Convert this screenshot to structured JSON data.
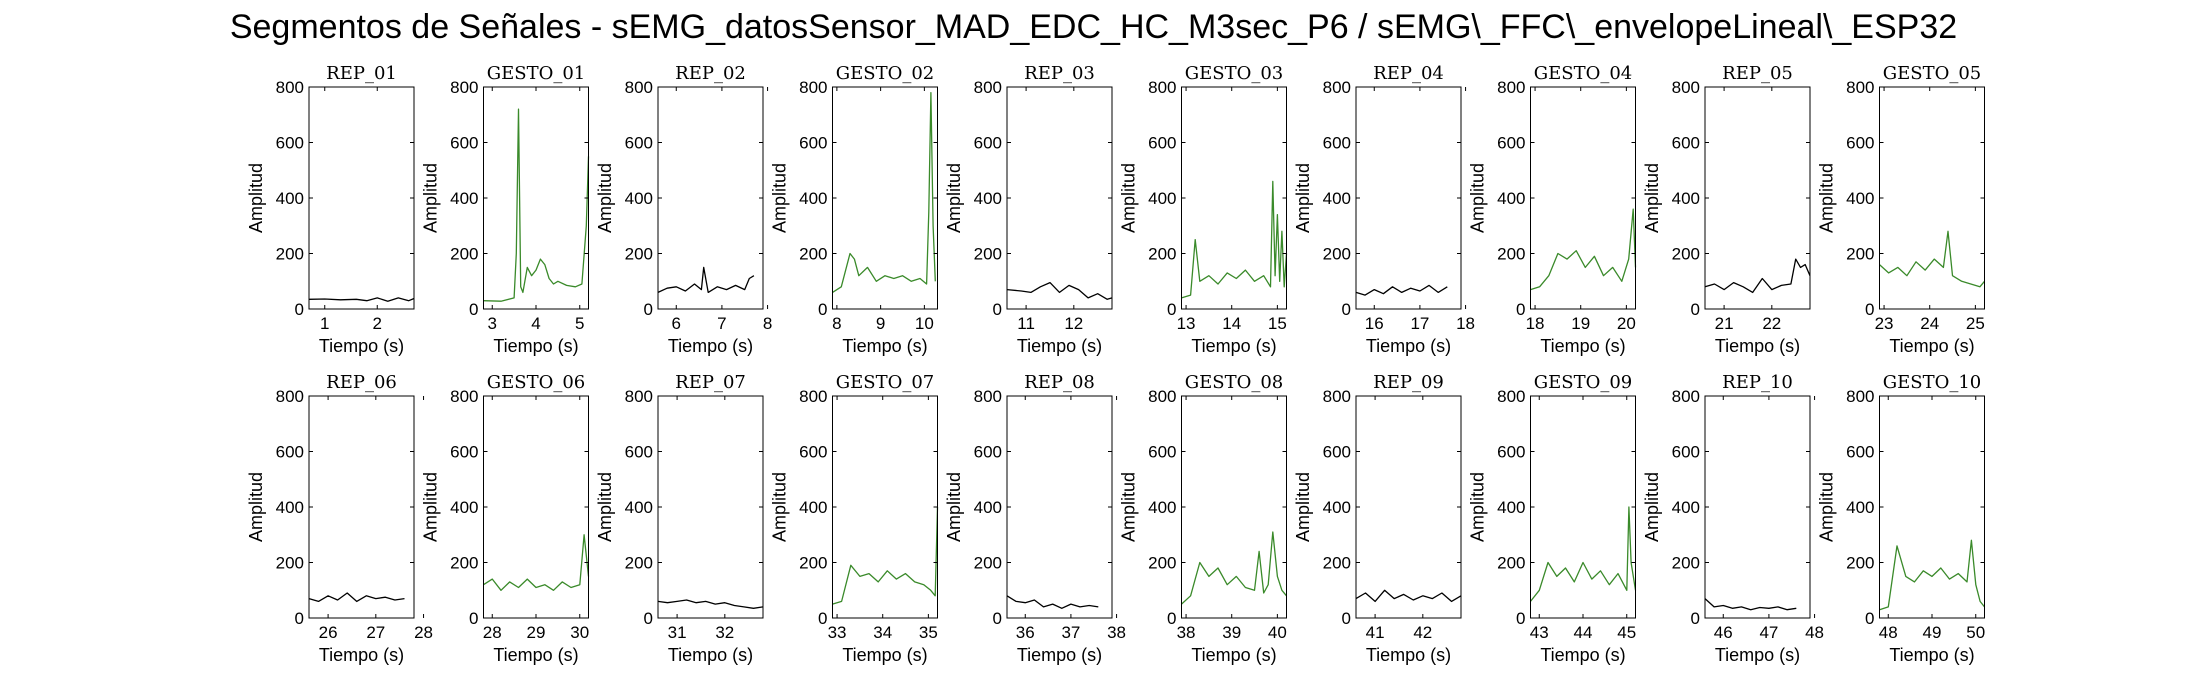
{
  "figure": {
    "title": "Segmentos de Señales - sEMG_datosSensor_MAD_EDC_HC_M3sec_P6 / sEMG\\_FFC\\_envelopeLineal\\_ESP32"
  },
  "colors": {
    "rep": "#000000",
    "gesto": "#3a8a2a",
    "axis": "#000000",
    "background": "#ffffff"
  },
  "chart_data": [
    {
      "type": "line",
      "title": "REP_01",
      "xlabel": "Tiempo (s)",
      "ylabel": "Amplitud",
      "xlim": [
        0.7,
        2.7
      ],
      "ylim": [
        0,
        800
      ],
      "xticks": [
        1,
        2
      ],
      "yticks": [
        0,
        200,
        400,
        600,
        800
      ],
      "series": [
        {
          "color": "#000000",
          "x": [
            0.7,
            1.0,
            1.3,
            1.6,
            1.8,
            2.0,
            2.2,
            2.4,
            2.6,
            2.7
          ],
          "y": [
            35,
            36,
            33,
            35,
            30,
            40,
            28,
            40,
            30,
            38
          ]
        }
      ]
    },
    {
      "type": "line",
      "title": "GESTO_01",
      "xlabel": "Tiempo (s)",
      "ylabel": "Amplitud",
      "xlim": [
        2.8,
        5.2
      ],
      "ylim": [
        0,
        800
      ],
      "xticks": [
        3,
        4,
        5
      ],
      "yticks": [
        0,
        200,
        400,
        600,
        800
      ],
      "series": [
        {
          "color": "#3a8a2a",
          "x": [
            2.8,
            3.2,
            3.5,
            3.55,
            3.6,
            3.65,
            3.7,
            3.8,
            3.9,
            4.0,
            4.1,
            4.2,
            4.3,
            4.4,
            4.5,
            4.7,
            4.9,
            5.05,
            5.15,
            5.2
          ],
          "y": [
            30,
            28,
            40,
            200,
            720,
            80,
            60,
            150,
            120,
            140,
            180,
            160,
            110,
            90,
            100,
            85,
            80,
            90,
            300,
            550
          ]
        }
      ]
    },
    {
      "type": "line",
      "title": "REP_02",
      "xlabel": "Tiempo (s)",
      "ylabel": "Amplitud",
      "xlim": [
        5.6,
        7.9
      ],
      "ylim": [
        0,
        800
      ],
      "xticks": [
        6,
        7,
        8
      ],
      "yticks": [
        0,
        200,
        400,
        600,
        800
      ],
      "series": [
        {
          "color": "#000000",
          "x": [
            5.6,
            5.8,
            6.0,
            6.2,
            6.4,
            6.55,
            6.6,
            6.7,
            6.9,
            7.1,
            7.3,
            7.5,
            7.6,
            7.7
          ],
          "y": [
            60,
            75,
            80,
            65,
            90,
            70,
            150,
            60,
            80,
            70,
            85,
            70,
            110,
            120
          ]
        }
      ]
    },
    {
      "type": "line",
      "title": "GESTO_02",
      "xlabel": "Tiempo (s)",
      "ylabel": "Amplitud",
      "xlim": [
        7.9,
        10.3
      ],
      "ylim": [
        0,
        800
      ],
      "xticks": [
        8,
        9,
        10
      ],
      "yticks": [
        0,
        200,
        400,
        600,
        800
      ],
      "series": [
        {
          "color": "#3a8a2a",
          "x": [
            7.9,
            8.1,
            8.3,
            8.4,
            8.5,
            8.7,
            8.9,
            9.1,
            9.3,
            9.5,
            9.7,
            9.9,
            10.05,
            10.1,
            10.15,
            10.2,
            10.25
          ],
          "y": [
            60,
            80,
            200,
            180,
            120,
            150,
            100,
            120,
            110,
            120,
            100,
            110,
            90,
            350,
            780,
            300,
            100
          ]
        }
      ]
    },
    {
      "type": "line",
      "title": "REP_03",
      "xlabel": "Tiempo (s)",
      "ylabel": "Amplitud",
      "xlim": [
        10.6,
        12.8
      ],
      "ylim": [
        0,
        800
      ],
      "xticks": [
        11,
        12
      ],
      "yticks": [
        0,
        200,
        400,
        600,
        800
      ],
      "series": [
        {
          "color": "#000000",
          "x": [
            10.6,
            10.9,
            11.1,
            11.3,
            11.5,
            11.7,
            11.9,
            12.1,
            12.3,
            12.5,
            12.7,
            12.8
          ],
          "y": [
            70,
            65,
            60,
            80,
            95,
            60,
            85,
            70,
            40,
            55,
            35,
            40
          ]
        }
      ]
    },
    {
      "type": "line",
      "title": "GESTO_03",
      "xlabel": "Tiempo (s)",
      "ylabel": "Amplitud",
      "xlim": [
        12.9,
        15.2
      ],
      "ylim": [
        0,
        800
      ],
      "xticks": [
        13,
        14,
        15
      ],
      "yticks": [
        0,
        200,
        400,
        600,
        800
      ],
      "series": [
        {
          "color": "#3a8a2a",
          "x": [
            12.9,
            13.1,
            13.2,
            13.3,
            13.5,
            13.7,
            13.9,
            14.1,
            14.3,
            14.5,
            14.7,
            14.85,
            14.9,
            14.95,
            15.0,
            15.05,
            15.1,
            15.15,
            15.2
          ],
          "y": [
            40,
            50,
            250,
            100,
            120,
            90,
            130,
            110,
            140,
            100,
            120,
            80,
            460,
            120,
            340,
            100,
            280,
            80,
            200
          ]
        }
      ]
    },
    {
      "type": "line",
      "title": "REP_04",
      "xlabel": "Tiempo (s)",
      "ylabel": "Amplitud",
      "xlim": [
        15.6,
        17.9
      ],
      "ylim": [
        0,
        800
      ],
      "xticks": [
        16,
        17,
        18
      ],
      "yticks": [
        0,
        200,
        400,
        600,
        800
      ],
      "series": [
        {
          "color": "#000000",
          "x": [
            15.6,
            15.8,
            16.0,
            16.2,
            16.4,
            16.6,
            16.8,
            17.0,
            17.2,
            17.4,
            17.6
          ],
          "y": [
            60,
            50,
            70,
            55,
            80,
            60,
            75,
            65,
            85,
            60,
            80
          ]
        }
      ]
    },
    {
      "type": "line",
      "title": "GESTO_04",
      "xlabel": "Tiempo (s)",
      "ylabel": "Amplitud",
      "xlim": [
        17.9,
        20.2
      ],
      "ylim": [
        0,
        800
      ],
      "xticks": [
        18,
        19,
        20
      ],
      "yticks": [
        0,
        200,
        400,
        600,
        800
      ],
      "series": [
        {
          "color": "#3a8a2a",
          "x": [
            17.9,
            18.1,
            18.3,
            18.5,
            18.7,
            18.9,
            19.1,
            19.3,
            19.5,
            19.7,
            19.9,
            20.05,
            20.15,
            20.2
          ],
          "y": [
            70,
            80,
            120,
            200,
            180,
            210,
            150,
            190,
            120,
            150,
            100,
            180,
            360,
            150
          ]
        }
      ]
    },
    {
      "type": "line",
      "title": "REP_05",
      "xlabel": "Tiempo (s)",
      "ylabel": "Amplitud",
      "xlim": [
        20.6,
        22.8
      ],
      "ylim": [
        0,
        800
      ],
      "xticks": [
        21,
        22
      ],
      "yticks": [
        0,
        200,
        400,
        600,
        800
      ],
      "series": [
        {
          "color": "#000000",
          "x": [
            20.6,
            20.8,
            21.0,
            21.2,
            21.4,
            21.6,
            21.8,
            22.0,
            22.2,
            22.4,
            22.5,
            22.6,
            22.7,
            22.8
          ],
          "y": [
            80,
            90,
            70,
            95,
            80,
            60,
            110,
            70,
            85,
            90,
            180,
            150,
            160,
            120
          ]
        }
      ]
    },
    {
      "type": "line",
      "title": "GESTO_05",
      "xlabel": "Tiempo (s)",
      "ylabel": "Amplitud",
      "xlim": [
        22.9,
        25.2
      ],
      "ylim": [
        0,
        800
      ],
      "xticks": [
        23,
        24,
        25
      ],
      "yticks": [
        0,
        200,
        400,
        600,
        800
      ],
      "series": [
        {
          "color": "#3a8a2a",
          "x": [
            22.9,
            23.1,
            23.3,
            23.5,
            23.7,
            23.9,
            24.1,
            24.3,
            24.4,
            24.5,
            24.7,
            24.9,
            25.1,
            25.2
          ],
          "y": [
            160,
            130,
            150,
            120,
            170,
            140,
            180,
            150,
            280,
            120,
            100,
            90,
            80,
            100
          ]
        }
      ]
    },
    {
      "type": "line",
      "title": "REP_06",
      "xlabel": "Tiempo (s)",
      "ylabel": "Amplitud",
      "xlim": [
        25.6,
        27.8
      ],
      "ylim": [
        0,
        800
      ],
      "xticks": [
        26,
        27,
        28
      ],
      "yticks": [
        0,
        200,
        400,
        600,
        800
      ],
      "series": [
        {
          "color": "#000000",
          "x": [
            25.6,
            25.8,
            26.0,
            26.2,
            26.4,
            26.6,
            26.8,
            27.0,
            27.2,
            27.4,
            27.6
          ],
          "y": [
            70,
            60,
            80,
            65,
            90,
            60,
            80,
            70,
            75,
            65,
            70
          ]
        }
      ]
    },
    {
      "type": "line",
      "title": "GESTO_06",
      "xlabel": "Tiempo (s)",
      "ylabel": "Amplitud",
      "xlim": [
        27.8,
        30.2
      ],
      "ylim": [
        0,
        800
      ],
      "xticks": [
        28,
        29,
        30
      ],
      "yticks": [
        0,
        200,
        400,
        600,
        800
      ],
      "series": [
        {
          "color": "#3a8a2a",
          "x": [
            27.8,
            28.0,
            28.2,
            28.4,
            28.6,
            28.8,
            29.0,
            29.2,
            29.4,
            29.6,
            29.8,
            30.0,
            30.1,
            30.2
          ],
          "y": [
            120,
            140,
            100,
            130,
            110,
            140,
            110,
            120,
            100,
            130,
            110,
            120,
            300,
            150
          ]
        }
      ]
    },
    {
      "type": "line",
      "title": "REP_07",
      "xlabel": "Tiempo (s)",
      "ylabel": "Amplitud",
      "xlim": [
        30.6,
        32.8
      ],
      "ylim": [
        0,
        800
      ],
      "xticks": [
        31,
        32
      ],
      "yticks": [
        0,
        200,
        400,
        600,
        800
      ],
      "series": [
        {
          "color": "#000000",
          "x": [
            30.6,
            30.8,
            31.0,
            31.2,
            31.4,
            31.6,
            31.8,
            32.0,
            32.2,
            32.4,
            32.6,
            32.8
          ],
          "y": [
            60,
            55,
            60,
            65,
            55,
            60,
            50,
            55,
            45,
            40,
            35,
            40
          ]
        }
      ]
    },
    {
      "type": "line",
      "title": "GESTO_07",
      "xlabel": "Tiempo (s)",
      "ylabel": "Amplitud",
      "xlim": [
        32.9,
        35.2
      ],
      "ylim": [
        0,
        800
      ],
      "xticks": [
        33,
        34,
        35
      ],
      "yticks": [
        0,
        200,
        400,
        600,
        800
      ],
      "series": [
        {
          "color": "#3a8a2a",
          "x": [
            32.9,
            33.1,
            33.3,
            33.5,
            33.7,
            33.9,
            34.1,
            34.3,
            34.5,
            34.7,
            34.9,
            35.05,
            35.15,
            35.2
          ],
          "y": [
            50,
            60,
            190,
            150,
            160,
            130,
            170,
            140,
            160,
            130,
            120,
            100,
            80,
            400
          ]
        }
      ]
    },
    {
      "type": "line",
      "title": "REP_08",
      "xlabel": "Tiempo (s)",
      "ylabel": "Amplitud",
      "xlim": [
        35.6,
        37.9
      ],
      "ylim": [
        0,
        800
      ],
      "xticks": [
        36,
        37,
        38
      ],
      "yticks": [
        0,
        200,
        400,
        600,
        800
      ],
      "series": [
        {
          "color": "#000000",
          "x": [
            35.6,
            35.8,
            36.0,
            36.2,
            36.4,
            36.6,
            36.8,
            37.0,
            37.2,
            37.4,
            37.6
          ],
          "y": [
            80,
            60,
            55,
            65,
            40,
            50,
            35,
            50,
            40,
            45,
            40
          ]
        }
      ]
    },
    {
      "type": "line",
      "title": "GESTO_08",
      "xlabel": "Tiempo (s)",
      "ylabel": "Amplitud",
      "xlim": [
        37.9,
        40.2
      ],
      "ylim": [
        0,
        800
      ],
      "xticks": [
        38,
        39,
        40
      ],
      "yticks": [
        0,
        200,
        400,
        600,
        800
      ],
      "series": [
        {
          "color": "#3a8a2a",
          "x": [
            37.9,
            38.1,
            38.3,
            38.5,
            38.7,
            38.9,
            39.1,
            39.3,
            39.5,
            39.6,
            39.7,
            39.8,
            39.9,
            40.0,
            40.1,
            40.2
          ],
          "y": [
            50,
            80,
            200,
            150,
            180,
            120,
            150,
            110,
            100,
            240,
            90,
            120,
            310,
            150,
            100,
            80
          ]
        }
      ]
    },
    {
      "type": "line",
      "title": "REP_09",
      "xlabel": "Tiempo (s)",
      "ylabel": "Amplitud",
      "xlim": [
        40.6,
        42.8
      ],
      "ylim": [
        0,
        800
      ],
      "xticks": [
        41,
        42
      ],
      "yticks": [
        0,
        200,
        400,
        600,
        800
      ],
      "series": [
        {
          "color": "#000000",
          "x": [
            40.6,
            40.8,
            41.0,
            41.2,
            41.4,
            41.6,
            41.8,
            42.0,
            42.2,
            42.4,
            42.6,
            42.8
          ],
          "y": [
            70,
            90,
            60,
            100,
            70,
            85,
            65,
            80,
            70,
            90,
            60,
            80
          ]
        }
      ]
    },
    {
      "type": "line",
      "title": "GESTO_09",
      "xlabel": "Tiempo (s)",
      "ylabel": "Amplitud",
      "xlim": [
        42.8,
        45.2
      ],
      "ylim": [
        0,
        800
      ],
      "xticks": [
        43,
        44,
        45
      ],
      "yticks": [
        0,
        200,
        400,
        600,
        800
      ],
      "series": [
        {
          "color": "#3a8a2a",
          "x": [
            42.8,
            43.0,
            43.2,
            43.4,
            43.6,
            43.8,
            44.0,
            44.2,
            44.4,
            44.6,
            44.8,
            45.0,
            45.05,
            45.1,
            45.2
          ],
          "y": [
            60,
            100,
            200,
            150,
            180,
            130,
            200,
            140,
            170,
            120,
            160,
            100,
            400,
            200,
            100
          ]
        }
      ]
    },
    {
      "type": "line",
      "title": "REP_10",
      "xlabel": "Tiempo (s)",
      "ylabel": "Amplitud",
      "xlim": [
        45.6,
        47.9
      ],
      "ylim": [
        0,
        800
      ],
      "xticks": [
        46,
        47,
        48
      ],
      "yticks": [
        0,
        200,
        400,
        600,
        800
      ],
      "series": [
        {
          "color": "#000000",
          "x": [
            45.6,
            45.8,
            46.0,
            46.2,
            46.4,
            46.6,
            46.8,
            47.0,
            47.2,
            47.4,
            47.6
          ],
          "y": [
            70,
            40,
            45,
            35,
            40,
            30,
            38,
            35,
            40,
            30,
            35
          ]
        }
      ]
    },
    {
      "type": "line",
      "title": "GESTO_10",
      "xlabel": "Tiempo (s)",
      "ylabel": "Amplitud",
      "xlim": [
        47.8,
        50.2
      ],
      "ylim": [
        0,
        800
      ],
      "xticks": [
        48,
        49,
        50
      ],
      "yticks": [
        0,
        200,
        400,
        600,
        800
      ],
      "series": [
        {
          "color": "#3a8a2a",
          "x": [
            47.8,
            48.0,
            48.2,
            48.4,
            48.6,
            48.8,
            49.0,
            49.2,
            49.4,
            49.6,
            49.8,
            49.9,
            50.0,
            50.1,
            50.2
          ],
          "y": [
            30,
            40,
            260,
            150,
            130,
            170,
            150,
            180,
            140,
            160,
            130,
            280,
            120,
            60,
            40
          ]
        }
      ]
    }
  ]
}
